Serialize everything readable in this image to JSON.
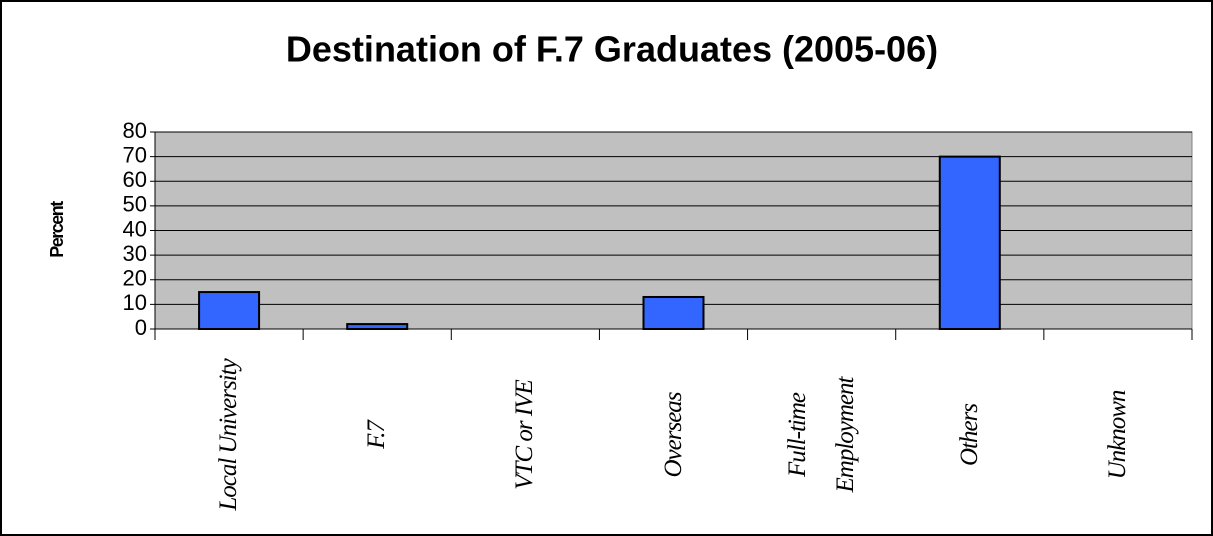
{
  "chart_data": {
    "type": "bar",
    "title": "Destination of F.7 Graduates (2005-06)",
    "y_label": "Percent",
    "categories": [
      "Local University",
      "F.7",
      "VTC or IVE",
      "Overseas",
      "Full-time Employment",
      "Others",
      "Unknown"
    ],
    "values": [
      15,
      2,
      0,
      13,
      0,
      70,
      0
    ],
    "color": "#3366ff",
    "ylim": [
      0,
      80
    ],
    "yticks": [
      0,
      10,
      20,
      30,
      40,
      50,
      60,
      70,
      80
    ],
    "grid": true
  }
}
